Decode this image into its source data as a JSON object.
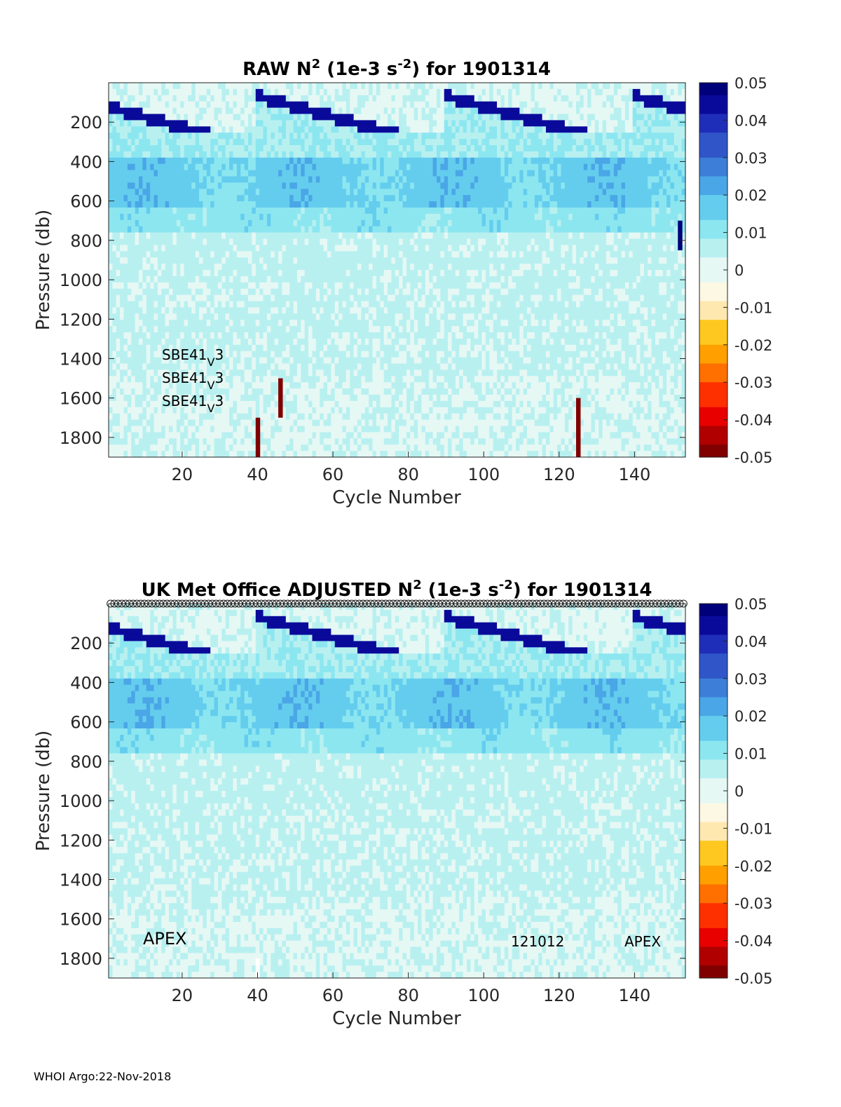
{
  "footer": "WHOI Argo:22-Nov-2018",
  "colors": {
    "colormap": [
      "#800000",
      "#b00000",
      "#e80000",
      "#ff3000",
      "#ff7000",
      "#ffa000",
      "#ffc820",
      "#ffe8b0",
      "#fdf8e4",
      "#e6f8f4",
      "#b8f0f0",
      "#8ce6f0",
      "#64cdee",
      "#4aa6e6",
      "#3c7ed8",
      "#2f55c8",
      "#1f2eb8",
      "#0a0a9a",
      "#00007a"
    ],
    "raw_bar": "#8b0000",
    "flag_bar": "#000080"
  },
  "chart_data": [
    {
      "id": "raw",
      "type": "heatmap",
      "title_prefix": "RAW N",
      "title_sup1": "2",
      "title_mid": " (1e-3 s",
      "title_sup2": "-2",
      "title_suffix": ") for 1901314",
      "xlabel": "Cycle Number",
      "ylabel": "Pressure (db)",
      "xlim": [
        1,
        153
      ],
      "ylim": [
        1900,
        0
      ],
      "xticks": [
        20,
        40,
        60,
        80,
        100,
        120,
        140
      ],
      "yticks": [
        200,
        400,
        600,
        800,
        1000,
        1200,
        1400,
        1600,
        1800
      ],
      "clim": [
        -0.05,
        0.05
      ],
      "cticks": [
        "0.05",
        "0.04",
        "0.03",
        "0.02",
        "0.01",
        "0",
        "-0.01",
        "-0.02",
        "-0.03",
        "-0.04",
        "-0.05"
      ],
      "annotations": [
        "SBE41",
        "V",
        "3"
      ],
      "sensor_labels": 3,
      "spikes": [
        {
          "cycle": 40,
          "p_from": 1700,
          "p_to": 1900,
          "value": -0.05
        },
        {
          "cycle": 46,
          "p_from": 1500,
          "p_to": 1700,
          "value": -0.05
        },
        {
          "cycle": 125,
          "p_from": 1600,
          "p_to": 1900,
          "value": -0.05
        },
        {
          "cycle": 152,
          "p_from": 700,
          "p_to": 850,
          "value": 0.05
        }
      ],
      "markers": false
    },
    {
      "id": "adjusted",
      "type": "heatmap",
      "title_prefix": "UK Met Office  ADJUSTED N",
      "title_sup1": "2",
      "title_mid": " (1e-3 s",
      "title_sup2": "-2",
      "title_suffix": ") for 1901314",
      "xlabel": "Cycle Number",
      "ylabel": "Pressure (db)",
      "xlim": [
        1,
        153
      ],
      "ylim": [
        1900,
        0
      ],
      "xticks": [
        20,
        40,
        60,
        80,
        100,
        120,
        140
      ],
      "yticks": [
        200,
        400,
        600,
        800,
        1000,
        1200,
        1400,
        1600,
        1800
      ],
      "clim": [
        -0.05,
        0.05
      ],
      "cticks": [
        "0.05",
        "0.04",
        "0.03",
        "0.02",
        "0.01",
        "0",
        "-0.01",
        "-0.02",
        "-0.03",
        "-0.04",
        "-0.05"
      ],
      "label_left": "APEX",
      "label_mid": "121012",
      "label_right": "APEX",
      "gap": {
        "cycle": 40,
        "p_from": 1800,
        "p_to": 1900
      },
      "markers": true
    }
  ]
}
